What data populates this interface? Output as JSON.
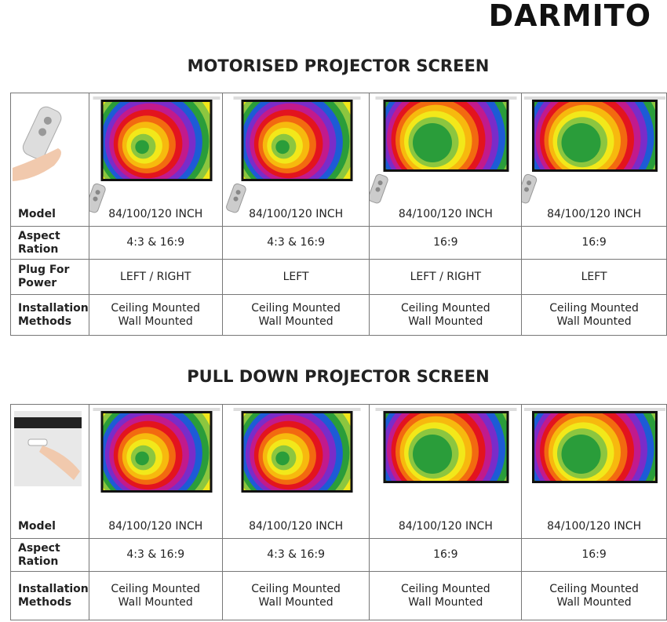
{
  "brand": "DARMITO",
  "sections": [
    {
      "title": "MOTORISED PROJECTOR SCREEN",
      "rows": [
        {
          "label": "Model",
          "cells": [
            [
              "84/100/120 INCH"
            ],
            [
              "84/100/120 INCH"
            ],
            [
              "84/100/120 INCH"
            ],
            [
              "84/100/120 INCH"
            ]
          ]
        },
        {
          "label": "Aspect Ration",
          "cells": [
            [
              "4:3 & 16:9"
            ],
            [
              "4:3 & 16:9"
            ],
            [
              "16:9"
            ],
            [
              "16:9"
            ]
          ]
        },
        {
          "label": "Plug For Power",
          "cells": [
            [
              "LEFT / RIGHT"
            ],
            [
              "LEFT"
            ],
            [
              "LEFT / RIGHT"
            ],
            [
              "LEFT"
            ]
          ]
        },
        {
          "label": "Installation Methods",
          "cells": [
            [
              "Ceiling Mounted",
              "Wall Mounted"
            ],
            [
              "Ceiling Mounted",
              "Wall Mounted"
            ],
            [
              "Ceiling Mounted",
              "Wall Mounted"
            ],
            [
              "Ceiling Mounted",
              "Wall Mounted"
            ]
          ]
        }
      ]
    },
    {
      "title": "PULL DOWN PROJECTOR SCREEN",
      "rows": [
        {
          "label": "Model",
          "cells": [
            [
              "84/100/120 INCH"
            ],
            [
              "84/100/120 INCH"
            ],
            [
              "84/100/120 INCH"
            ],
            [
              "84/100/120 INCH"
            ]
          ]
        },
        {
          "label": "Aspect Ration",
          "cells": [
            [
              "4:3 & 16:9"
            ],
            [
              "4:3 & 16:9"
            ],
            [
              "16:9"
            ],
            [
              "16:9"
            ]
          ]
        },
        {
          "label": "Installation Methods",
          "cells": [
            [
              "Ceiling Mounted",
              "Wall Mounted"
            ],
            [
              "Ceiling Mounted",
              "Wall Mounted"
            ],
            [
              "Ceiling Mounted",
              "Wall Mounted"
            ],
            [
              "Ceiling Mounted",
              "Wall Mounted"
            ]
          ]
        }
      ]
    }
  ]
}
